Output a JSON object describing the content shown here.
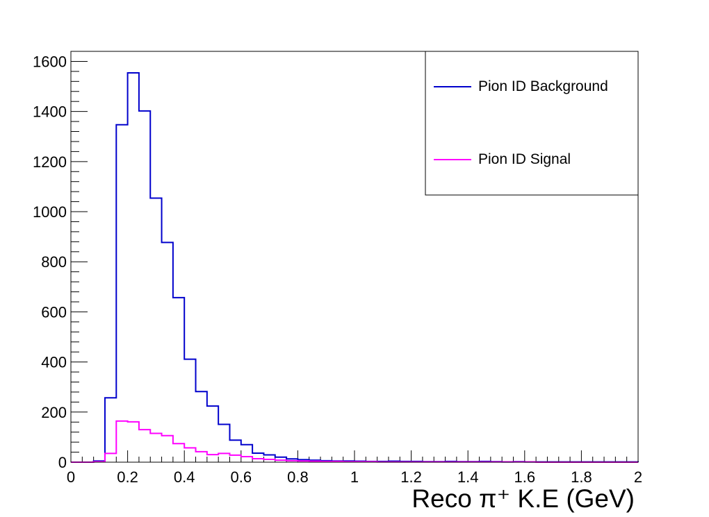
{
  "chart_data": {
    "type": "histogram",
    "xlabel": "Reco π⁺ K.E (GeV)",
    "ylabel": "",
    "xlim": [
      0,
      2
    ],
    "ylim": [
      0,
      1640
    ],
    "x_ticks": [
      0,
      0.2,
      0.4,
      0.6,
      0.8,
      1,
      1.2,
      1.4,
      1.6,
      1.8,
      2
    ],
    "x_tick_labels": [
      "0",
      "0.2",
      "0.4",
      "0.6",
      "0.8",
      "1",
      "1.2",
      "1.4",
      "1.6",
      "1.8",
      "2"
    ],
    "y_ticks": [
      0,
      200,
      400,
      600,
      800,
      1000,
      1200,
      1400,
      1600
    ],
    "y_tick_labels": [
      "0",
      "200",
      "400",
      "600",
      "800",
      "1000",
      "1200",
      "1400",
      "1600"
    ],
    "grid": false,
    "legend_position": "top-right",
    "bin_edges": [
      0,
      0.04,
      0.08,
      0.12,
      0.16,
      0.2,
      0.24,
      0.28,
      0.32,
      0.36,
      0.4,
      0.44,
      0.48,
      0.52,
      0.56,
      0.6,
      0.64,
      0.68,
      0.72,
      0.76,
      0.8,
      0.84,
      0.88,
      0.92,
      0.96,
      1.0,
      1.04,
      1.08,
      1.12,
      1.16,
      1.2,
      1.24,
      1.28,
      1.32,
      1.36,
      1.4,
      1.44,
      1.48,
      1.52,
      1.56,
      1.6,
      1.64,
      1.68,
      1.72,
      1.76,
      1.8,
      1.84,
      1.88,
      1.92,
      1.96,
      2.0
    ],
    "series": [
      {
        "name": "Pion ID Background",
        "color": "#0000cc",
        "values": [
          0,
          0,
          5,
          257,
          1347,
          1554,
          1402,
          1054,
          877,
          657,
          411,
          282,
          224,
          151,
          88,
          70,
          36,
          29,
          20,
          13,
          10,
          8,
          6,
          5,
          5,
          4,
          3,
          3,
          4,
          3,
          3,
          2,
          2,
          3,
          2,
          2,
          3,
          2,
          1,
          2,
          1,
          1,
          1,
          1,
          1,
          1,
          1,
          1,
          1,
          1
        ]
      },
      {
        "name": "Pion ID Signal",
        "color": "#ff00ff",
        "values": [
          0,
          0,
          2,
          35,
          164,
          161,
          130,
          115,
          106,
          74,
          57,
          42,
          30,
          35,
          28,
          22,
          14,
          11,
          8,
          6,
          5,
          4,
          3,
          3,
          2,
          2,
          2,
          1,
          1,
          1,
          1,
          1,
          1,
          1,
          1,
          1,
          1,
          1,
          1,
          1,
          1,
          0,
          0,
          0,
          0,
          0,
          0,
          0,
          0,
          0
        ]
      }
    ]
  }
}
